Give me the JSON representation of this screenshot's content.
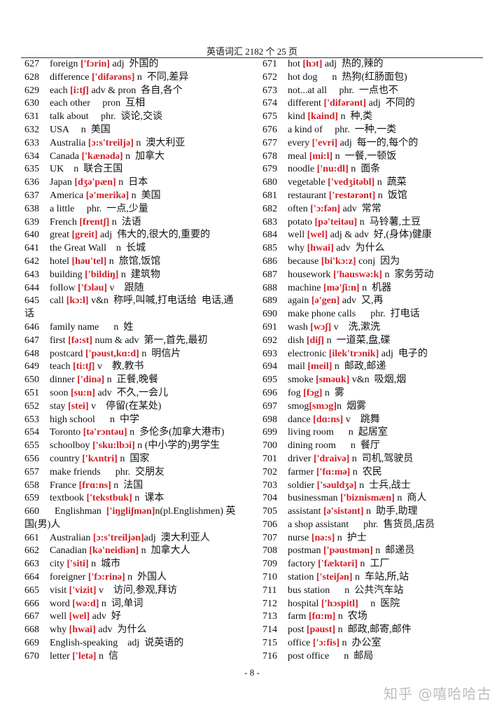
{
  "header": "英语词汇 2182 个  25 页",
  "footer": "- 8 -",
  "watermark": "知乎 @嘻哈哈古",
  "colors": {
    "phonetic": "#d0202a",
    "text": "#111111"
  },
  "left": [
    {
      "n": "627",
      "w": "foreign ",
      "p": "['fɔrin]",
      "r": " adj  外国的"
    },
    {
      "n": "628",
      "w": "difference ",
      "p": "['difərəns]",
      "r": " n  不同,差异"
    },
    {
      "n": "629",
      "w": "each ",
      "p": "[i:tʃ]",
      "r": " adv & pron  各自,各个"
    },
    {
      "n": "630",
      "w": "each other     ",
      "p": "",
      "r": "pron  互相"
    },
    {
      "n": "631",
      "w": "talk about     ",
      "p": "",
      "r": "phr.  谈论,交谈"
    },
    {
      "n": "632",
      "w": "USA     ",
      "p": "",
      "r": "n  美国"
    },
    {
      "n": "633",
      "w": "Australia ",
      "p": "[ɔ:s'treiljə]",
      "r": " n  澳大利亚"
    },
    {
      "n": "634",
      "w": "Canada ",
      "p": "['kænədə]",
      "r": " n  加拿大"
    },
    {
      "n": "635",
      "w": "UK    ",
      "p": "",
      "r": "n  联合王国"
    },
    {
      "n": "636",
      "w": "Japan ",
      "p": "[dʒə'pæn]",
      "r": " n  日本"
    },
    {
      "n": "637",
      "w": "America ",
      "p": "[ə'merikə]",
      "r": " n  美国"
    },
    {
      "n": "638",
      "w": "a little     ",
      "p": "",
      "r": "phr.  一点,少量"
    },
    {
      "n": "639",
      "w": "French ",
      "p": "[frentʃ]",
      "r": " n  法语"
    },
    {
      "n": "640",
      "w": "great ",
      "p": "[greit]",
      "r": " adj  伟大的,很大的,重要的"
    },
    {
      "n": "641",
      "w": "the Great Wall    ",
      "p": "",
      "r": "n  长城"
    },
    {
      "n": "642",
      "w": "hotel ",
      "p": "[həu'tel]",
      "r": " n  旅馆,饭馆"
    },
    {
      "n": "643",
      "w": "building ",
      "p": "['bildiŋ]",
      "r": " n  建筑物"
    },
    {
      "n": "644",
      "w": "follow ",
      "p": "['fɔləu]",
      "r": " v    跟随"
    },
    {
      "n": "645",
      "w": "call ",
      "p": "[kɔ:l]",
      "r": " v&n  称呼,叫喊,打电话给  电话,通",
      "c": "话"
    },
    {
      "n": "646",
      "w": "family name      ",
      "p": "",
      "r": "n  姓"
    },
    {
      "n": "647",
      "w": "first ",
      "p": "[fə:st]",
      "r": " num & adv  第一,首先,最初"
    },
    {
      "n": "648",
      "w": "postcard ",
      "p": "['pəust,kɑ:d]",
      "r": " n  明信片"
    },
    {
      "n": "649",
      "w": "teach ",
      "p": "[ti:tʃ]",
      "r": " v    教,教书"
    },
    {
      "n": "650",
      "w": "dinner ",
      "p": "['dinə]",
      "r": " n  正餐,晚餐"
    },
    {
      "n": "651",
      "w": "soon ",
      "p": "[su:n]",
      "r": " adv  不久,一会儿"
    },
    {
      "n": "652",
      "w": "stay ",
      "p": "[stei]",
      "r": " v    停留(在某处)"
    },
    {
      "n": "653",
      "w": "high school      ",
      "p": "",
      "r": "n  中学"
    },
    {
      "n": "654",
      "w": "Toronto ",
      "p": "[tə'rɔntəu]",
      "r": " n  多伦多(加拿大港市)"
    },
    {
      "n": "655",
      "w": "schoolboy ",
      "p": "['sku:lbɔi]",
      "r": " n (中小学的)男学生"
    },
    {
      "n": "656",
      "w": "country ",
      "p": "['kʌntri]",
      "r": " n  国家"
    },
    {
      "n": "657",
      "w": "make friends      ",
      "p": "",
      "r": "phr.  交朋友"
    },
    {
      "n": "658",
      "w": "France ",
      "p": "[frɑ:ns]",
      "r": " n  法国"
    },
    {
      "n": "659",
      "w": "textbook ",
      "p": "['tekstbuk]",
      "r": " n  课本"
    },
    {
      "n": "660",
      "w": "  Englishman  ",
      "p": "['iŋgliʃmən]",
      "r": "n(pl.Englishmen) 英",
      "c": "国(男)人"
    },
    {
      "n": "661",
      "w": "Australian ",
      "p": "[ɔ:s'treiljən]",
      "r": "adj  澳大利亚人"
    },
    {
      "n": "662",
      "w": "Canadian ",
      "p": "[kə'neidiən]",
      "r": " n  加拿大人"
    },
    {
      "n": "663",
      "w": "city ",
      "p": "['siti]",
      "r": " n  城市"
    },
    {
      "n": "664",
      "w": "foreigner ",
      "p": "['fɔ:rinə]",
      "r": " n  外国人"
    },
    {
      "n": "665",
      "w": "visit ",
      "p": "['vizit]",
      "r": " v    访问,参观,拜访"
    },
    {
      "n": "666",
      "w": "word ",
      "p": "[wə:d]",
      "r": " n  词,单词"
    },
    {
      "n": "667",
      "w": "well ",
      "p": "[wel]",
      "r": " adv  好"
    },
    {
      "n": "668",
      "w": "why ",
      "p": "[hwai]",
      "r": " adv  为什么"
    },
    {
      "n": "669",
      "w": "English-speaking    ",
      "p": "",
      "r": "adj  说英语的"
    },
    {
      "n": "670",
      "w": "letter ",
      "p": "['letə]",
      "r": " n  信"
    }
  ],
  "right": [
    {
      "n": "671",
      "w": "hot ",
      "p": "[hɔt]",
      "r": " adj  热的,辣的"
    },
    {
      "n": "672",
      "w": "hot dog      ",
      "p": "",
      "r": "n  热狗(红肠面包)"
    },
    {
      "n": "673",
      "w": "not...at all     ",
      "p": "",
      "r": "phr.  一点也不"
    },
    {
      "n": "674",
      "w": "different ",
      "p": "['difərənt]",
      "r": " adj  不同的"
    },
    {
      "n": "675",
      "w": "kind ",
      "p": "[kaind]",
      "r": " n  种,类"
    },
    {
      "n": "676",
      "w": "a kind of     ",
      "p": "",
      "r": "phr.  一种,一类"
    },
    {
      "n": "677",
      "w": "every ",
      "p": "['evri]",
      "r": " adj  每一的,每个的"
    },
    {
      "n": "678",
      "w": "meal ",
      "p": "[mi:l]",
      "r": " n  一餐,一顿饭"
    },
    {
      "n": "679",
      "w": "noodle ",
      "p": "['nu:dl]",
      "r": " n  面条"
    },
    {
      "n": "680",
      "w": "vegetable ",
      "p": "['vedʒitəbl]",
      "r": " n  蔬菜"
    },
    {
      "n": "681",
      "w": "restaurant ",
      "p": "['restərənt]",
      "r": " n  饭馆"
    },
    {
      "n": "682",
      "w": "often ",
      "p": "['ɔ:fən]",
      "r": " adv  常常"
    },
    {
      "n": "683",
      "w": "potato ",
      "p": "[pə'teitəu]",
      "r": " n  马铃薯,土豆"
    },
    {
      "n": "684",
      "w": "well ",
      "p": "[wel]",
      "r": " adj & adv  好,(身体)健康"
    },
    {
      "n": "685",
      "w": "why ",
      "p": "[hwai]",
      "r": " adv  为什么"
    },
    {
      "n": "686",
      "w": "because ",
      "p": "[bi'kɔ:z]",
      "r": " conj  因为"
    },
    {
      "n": "687",
      "w": "housework ",
      "p": "['hauswə:k]",
      "r": " n  家务劳动"
    },
    {
      "n": "688",
      "w": "machine ",
      "p": "[mə'ʃi:n]",
      "r": " n  机器"
    },
    {
      "n": "689",
      "w": "again ",
      "p": "[ə'gen]",
      "r": " adv  又,再"
    },
    {
      "n": "690",
      "w": "make phone calls      ",
      "p": "",
      "r": "phr.  打电话"
    },
    {
      "n": "691",
      "w": "wash ",
      "p": "[wɔʃ]",
      "r": " v    洗,漱洗"
    },
    {
      "n": "692",
      "w": "dish ",
      "p": "[diʃ]",
      "r": " n  一道菜,盘,碟"
    },
    {
      "n": "693",
      "w": "electronic ",
      "p": "[ilek'trɔnik]",
      "r": " adj  电子的"
    },
    {
      "n": "694",
      "w": "mail ",
      "p": "[meil]",
      "r": " n  邮政,邮递"
    },
    {
      "n": "695",
      "w": "smoke ",
      "p": "[sməuk]",
      "r": " v&n  吸烟,烟"
    },
    {
      "n": "696",
      "w": "fog ",
      "p": "[fɔg]",
      "r": " n  雾"
    },
    {
      "n": "697",
      "w": "smog",
      "p": "[smɔg]",
      "r": "n  烟雾"
    },
    {
      "n": "698",
      "w": "dance ",
      "p": "[dɑ:ns]",
      "r": " v    跳舞"
    },
    {
      "n": "699",
      "w": "living room      ",
      "p": "",
      "r": "n  起居室"
    },
    {
      "n": "700",
      "w": "dining room      ",
      "p": "",
      "r": "n  餐厅"
    },
    {
      "n": "701",
      "w": "driver ",
      "p": "['draivə]",
      "r": " n  司机,驾驶员"
    },
    {
      "n": "702",
      "w": "farmer ",
      "p": "['fɑ:mə]",
      "r": " n  农民"
    },
    {
      "n": "703",
      "w": "soldier ",
      "p": "['səuldʒə]",
      "r": " n  士兵,战士"
    },
    {
      "n": "704",
      "w": "businessman ",
      "p": "['biznismæn]",
      "r": " n  商人"
    },
    {
      "n": "705",
      "w": "assistant ",
      "p": "[ə'sistənt]",
      "r": " n  助手,助理"
    },
    {
      "n": "706",
      "w": "a shop assistant      ",
      "p": "",
      "r": "phr.  售货员,店员"
    },
    {
      "n": "707",
      "w": "nurse ",
      "p": "[nə:s]",
      "r": " n  护士"
    },
    {
      "n": "708",
      "w": "postman ",
      "p": "['pəustmən]",
      "r": " n  邮递员"
    },
    {
      "n": "709",
      "w": "factory ",
      "p": "['fæktəri]",
      "r": " n  工厂"
    },
    {
      "n": "710",
      "w": "station ",
      "p": "['steiʃən]",
      "r": " n  车站,所,站"
    },
    {
      "n": "711",
      "w": "bus station      ",
      "p": "",
      "r": "n  公共汽车站"
    },
    {
      "n": "712",
      "w": "hospital ",
      "p": "['hɔspitl]",
      "r": "     n  医院"
    },
    {
      "n": "713",
      "w": "farm ",
      "p": "[fɑ:m]",
      "r": " n  农场"
    },
    {
      "n": "714",
      "w": "post ",
      "p": "[pəust]",
      "r": " n  邮政,邮寄,邮件"
    },
    {
      "n": "715",
      "w": "office ",
      "p": "['ɔ:fis]",
      "r": " n  办公室"
    },
    {
      "n": "716",
      "w": "post office      ",
      "p": "",
      "r": "n  邮局"
    }
  ]
}
